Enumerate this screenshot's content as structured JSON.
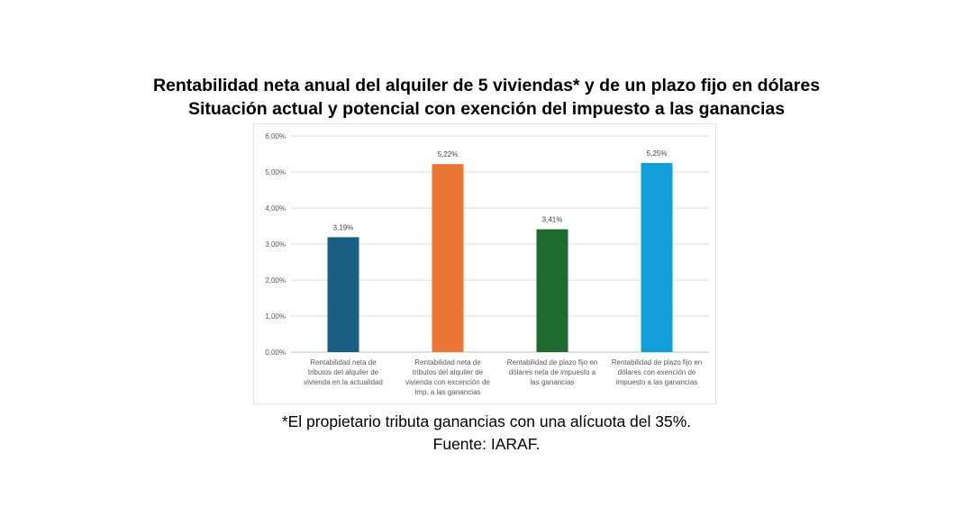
{
  "header": {
    "title_line1": "Rentabilidad neta anual del alquiler de 5 viviendas* y de un plazo fijo en dólares",
    "title_line2": "Situación actual y potencial con exención del impuesto a las ganancias"
  },
  "chart_data": {
    "type": "bar",
    "categories": [
      [
        "Rentabilidad neta de",
        "tributos del alquiler de",
        "vivienda en la actualidad"
      ],
      [
        "Rentabilidad neta de",
        "tributos del alquiler de",
        "vivienda con excención de",
        "imp. a las ganancias"
      ],
      [
        "Rentabilidad de plazo fijo en",
        "dólares neta de impuesto a",
        "las ganancias"
      ],
      [
        "Rentabilidad de plazo fijo en",
        "dólares con exención de",
        "impuesto a las ganancias"
      ]
    ],
    "values": [
      3.19,
      5.22,
      3.41,
      5.25
    ],
    "data_labels": [
      "3,19%",
      "5,22%",
      "3,41%",
      "5,25%"
    ],
    "colors": [
      "#1a5e82",
      "#ea7535",
      "#1f6b2e",
      "#129fd9"
    ],
    "y_ticks": [
      0,
      1,
      2,
      3,
      4,
      5,
      6
    ],
    "y_tick_labels": [
      "0,00%",
      "1,00%",
      "2,00%",
      "3,00%",
      "4,00%",
      "5,00%",
      "6,00%"
    ],
    "ylim": [
      0,
      6
    ],
    "grid": true,
    "legend": false,
    "xlabel": "",
    "ylabel": ""
  },
  "footer": {
    "note": "*El propietario tributa ganancias con una alícuota del 35%.",
    "source": "Fuente: IARAF."
  }
}
